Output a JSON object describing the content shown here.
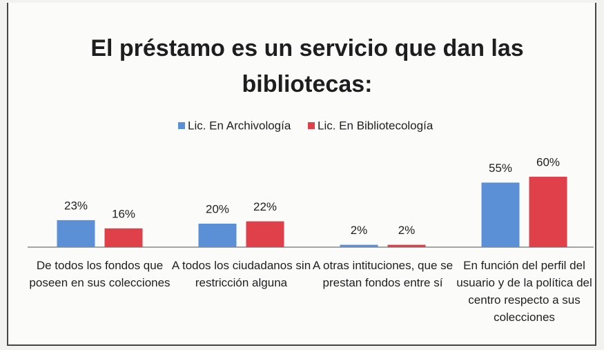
{
  "chart_data": {
    "type": "bar",
    "title": "El préstamo es un servicio que dan las bibliotecas:",
    "categories": [
      "De todos los fondos que poseen en sus colecciones",
      "A todos los ciudadanos sin restricción alguna",
      "A otras intituciones, que se prestan fondos entre sí",
      "En función del perfil del usuario y de la política del centro respecto a sus colecciones"
    ],
    "series": [
      {
        "name": "Lic. En Archivología",
        "color": "#5b8fd6",
        "values": [
          23,
          20,
          2,
          55
        ],
        "value_labels": [
          "23%",
          "20%",
          "2%",
          "55%"
        ]
      },
      {
        "name": "Lic. En Bibliotecología",
        "color": "#e0404a",
        "values": [
          16,
          22,
          2,
          60
        ],
        "value_labels": [
          "16%",
          "22%",
          "2%",
          "60%"
        ]
      }
    ],
    "legend": "top"
  }
}
